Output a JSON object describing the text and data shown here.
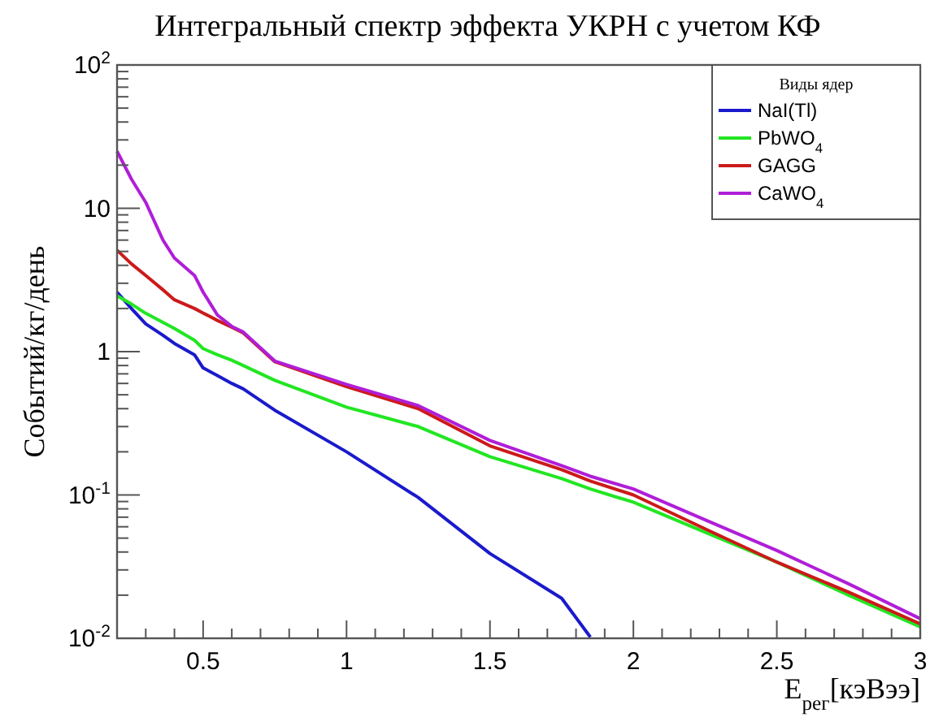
{
  "chart_data": {
    "type": "line",
    "title": "Интегральный спектр эффекта УКРН с учетом КФ",
    "xlabel": "E$_{рег}$[кэВээ]",
    "ylabel": "Событий/кг/день",
    "legend_title": "Виды ядер",
    "legend": "top right",
    "log": "y",
    "grid": false,
    "xlim": [
      0.2,
      3
    ],
    "ylim": [
      0.01,
      100
    ],
    "xticks": [
      {
        "value": 0.3,
        "label": null
      },
      {
        "value": 0.4,
        "label": null
      },
      0.5,
      {
        "value": 0.6,
        "label": null
      },
      {
        "value": 0.7,
        "label": null
      },
      {
        "value": 0.8,
        "label": null
      },
      {
        "value": 0.9,
        "label": null
      },
      1,
      {
        "value": 1.1,
        "label": null
      },
      {
        "value": 1.2,
        "label": null
      },
      {
        "value": 1.3,
        "label": null
      },
      {
        "value": 1.4,
        "label": null
      },
      1.5,
      {
        "value": 1.6,
        "label": null
      },
      {
        "value": 1.7,
        "label": null
      },
      {
        "value": 1.8,
        "label": null
      },
      {
        "value": 1.9,
        "label": null
      },
      2,
      {
        "value": 2.1,
        "label": null
      },
      {
        "value": 2.2,
        "label": null
      },
      {
        "value": 2.3,
        "label": null
      },
      {
        "value": 2.4,
        "label": null
      },
      2.5,
      {
        "value": 2.6,
        "label": null
      },
      {
        "value": 2.7,
        "label": null
      },
      {
        "value": 2.8,
        "label": null
      },
      {
        "value": 2.9,
        "label": null
      },
      3
    ],
    "yticks": [
      {
        "value": 0.01,
        "label": "10$^{-2}$"
      },
      {
        "value": 0.02,
        "label": null
      },
      {
        "value": 0.03,
        "label": null
      },
      {
        "value": 0.04,
        "label": null
      },
      {
        "value": 0.05,
        "label": null
      },
      {
        "value": 0.06,
        "label": null
      },
      {
        "value": 0.07,
        "label": null
      },
      {
        "value": 0.08,
        "label": null
      },
      {
        "value": 0.09,
        "label": null
      },
      {
        "value": 0.1,
        "label": "10$^{-1}$"
      },
      {
        "value": 0.2,
        "label": null
      },
      {
        "value": 0.3,
        "label": null
      },
      {
        "value": 0.4,
        "label": null
      },
      {
        "value": 0.5,
        "label": null
      },
      {
        "value": 0.6,
        "label": null
      },
      {
        "value": 0.7,
        "label": null
      },
      {
        "value": 0.8,
        "label": null
      },
      {
        "value": 0.9,
        "label": null
      },
      1,
      {
        "value": 2,
        "label": null
      },
      {
        "value": 3,
        "label": null
      },
      {
        "value": 4,
        "label": null
      },
      {
        "value": 5,
        "label": null
      },
      {
        "value": 6,
        "label": null
      },
      {
        "value": 7,
        "label": null
      },
      {
        "value": 8,
        "label": null
      },
      {
        "value": 9,
        "label": null
      },
      10,
      {
        "value": 20,
        "label": null
      },
      {
        "value": 30,
        "label": null
      },
      {
        "value": 40,
        "label": null
      },
      {
        "value": 50,
        "label": null
      },
      {
        "value": 60,
        "label": null
      },
      {
        "value": 70,
        "label": null
      },
      {
        "value": 80,
        "label": null
      },
      {
        "value": 90,
        "label": null
      },
      {
        "value": 100,
        "label": "10$^{2}$"
      }
    ],
    "x": [
      0.2,
      0.25,
      0.3,
      0.36,
      0.4,
      0.47,
      0.5,
      0.55,
      0.6,
      0.64,
      0.75,
      1,
      1.25,
      1.5,
      1.75,
      1.85,
      2,
      2.25,
      2.5,
      2.75,
      3
    ],
    "series": [
      {
        "name": "NaI(Tl)",
        "color": "#1a1acc",
        "values": [
          2.6,
          2.0,
          1.56,
          1.3,
          1.14,
          0.95,
          0.77,
          0.68,
          0.6,
          0.55,
          0.39,
          0.2,
          0.096,
          0.039,
          0.019,
          0.0102,
          null,
          null,
          null,
          null,
          null
        ]
      },
      {
        "name": "PbWO$_{4}$",
        "color": "#22e622",
        "values": [
          2.45,
          2.15,
          1.85,
          1.6,
          1.45,
          1.2,
          1.05,
          0.95,
          0.87,
          0.8,
          0.63,
          0.41,
          0.3,
          0.185,
          0.13,
          0.11,
          0.089,
          0.055,
          0.034,
          0.02,
          0.012
        ]
      },
      {
        "name": "GAGG",
        "color": "#cc1a1a",
        "values": [
          5.1,
          4.1,
          3.4,
          2.7,
          2.3,
          2.0,
          1.86,
          1.65,
          1.48,
          1.35,
          0.85,
          0.57,
          0.4,
          0.22,
          0.15,
          0.125,
          0.1,
          0.058,
          0.034,
          0.021,
          0.0126
        ]
      },
      {
        "name": "CaWO$_{4}$",
        "color": "#b01ed8",
        "values": [
          25,
          16,
          11,
          6,
          4.5,
          3.4,
          2.6,
          1.8,
          1.5,
          1.37,
          0.86,
          0.59,
          0.42,
          0.24,
          0.16,
          0.135,
          0.11,
          0.067,
          0.041,
          0.024,
          0.0137
        ]
      }
    ]
  }
}
